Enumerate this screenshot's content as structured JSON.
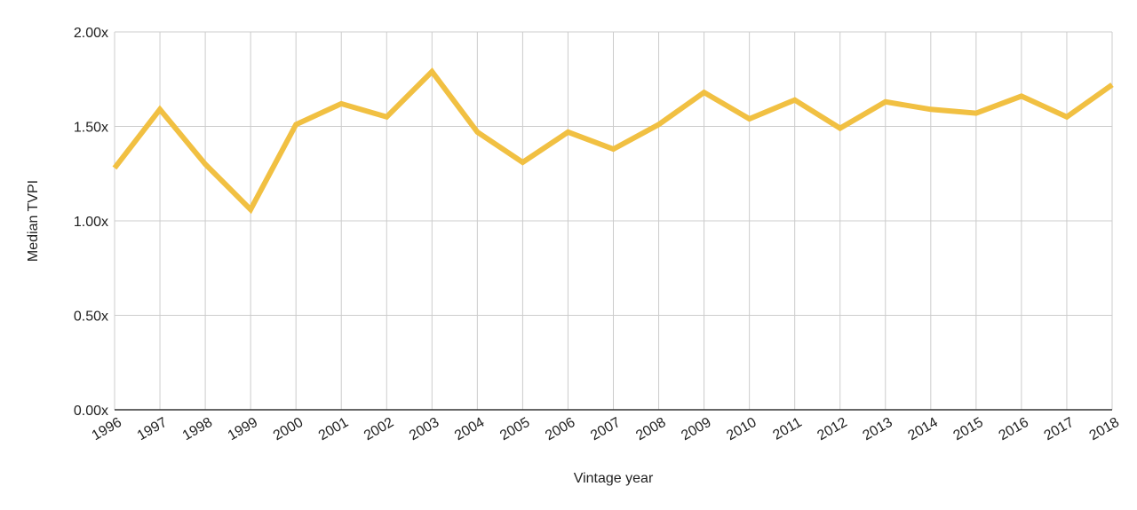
{
  "chart_data": {
    "type": "line",
    "title": "",
    "xlabel": "Vintage year",
    "ylabel": "Median TVPI",
    "ylim": [
      0,
      2.0
    ],
    "y_ticks": [
      "0.00x",
      "0.50x",
      "1.00x",
      "1.50x",
      "2.00x"
    ],
    "y_tick_values": [
      0,
      0.5,
      1.0,
      1.5,
      2.0
    ],
    "grid": true,
    "legend": "none",
    "categories": [
      "1996",
      "1997",
      "1998",
      "1999",
      "2000",
      "2001",
      "2002",
      "2003",
      "2004",
      "2005",
      "2006",
      "2007",
      "2008",
      "2009",
      "2010",
      "2011",
      "2012",
      "2013",
      "2014",
      "2015",
      "2016",
      "2017",
      "2018"
    ],
    "series": [
      {
        "color": "#f1c042",
        "values": [
          1.28,
          1.59,
          1.3,
          1.06,
          1.51,
          1.62,
          1.55,
          1.79,
          1.47,
          1.31,
          1.47,
          1.38,
          1.51,
          1.68,
          1.54,
          1.64,
          1.49,
          1.63,
          1.59,
          1.57,
          1.66,
          1.55,
          1.72
        ]
      }
    ],
    "colors": {
      "grid": "#cccccc",
      "axis": "#333333",
      "text": "#222222"
    }
  }
}
